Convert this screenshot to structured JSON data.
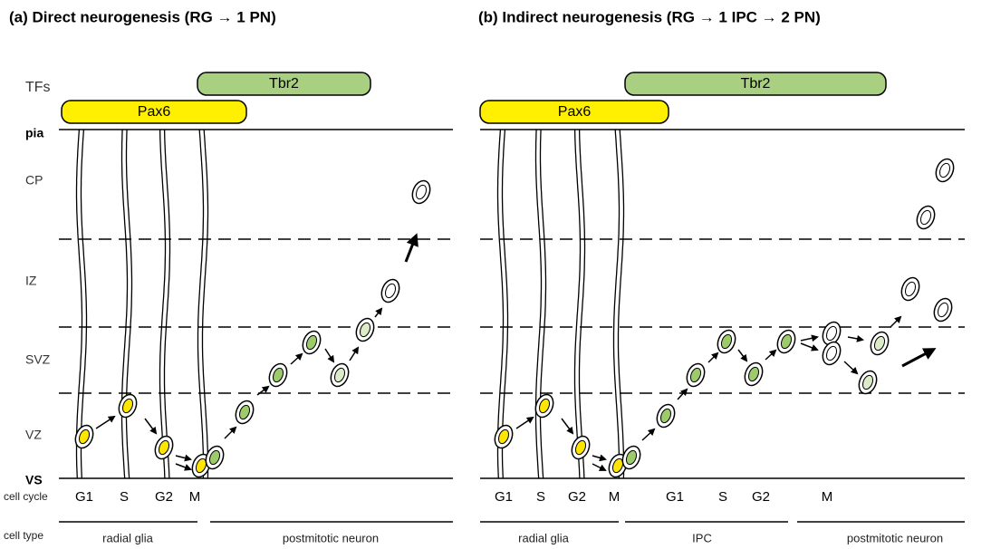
{
  "row_labels": {
    "tfs": "TFs",
    "layers": [
      "pia",
      "CP",
      "IZ",
      "SVZ",
      "VZ",
      "VS"
    ],
    "cell_cycle": "cell cycle",
    "cell_type": "cell type"
  },
  "panels": [
    {
      "title": "(a) Direct neurogenesis (RG → 1 PN)",
      "tfs": [
        "Pax6",
        "Tbr2"
      ],
      "cell_cycle": [
        "G1",
        "S",
        "G2",
        "M"
      ],
      "cell_types": [
        "radial glia",
        "postmitotic neuron"
      ]
    },
    {
      "title": "(b) Indirect neurogenesis (RG → 1 IPC → 2 PN)",
      "tfs": [
        "Pax6",
        "Tbr2"
      ],
      "cell_cycle": [
        "G1",
        "S",
        "G2",
        "M",
        "G1",
        "S",
        "G2",
        "M"
      ],
      "cell_types": [
        "radial glia",
        "IPC",
        "postmitotic neuron"
      ]
    }
  ]
}
